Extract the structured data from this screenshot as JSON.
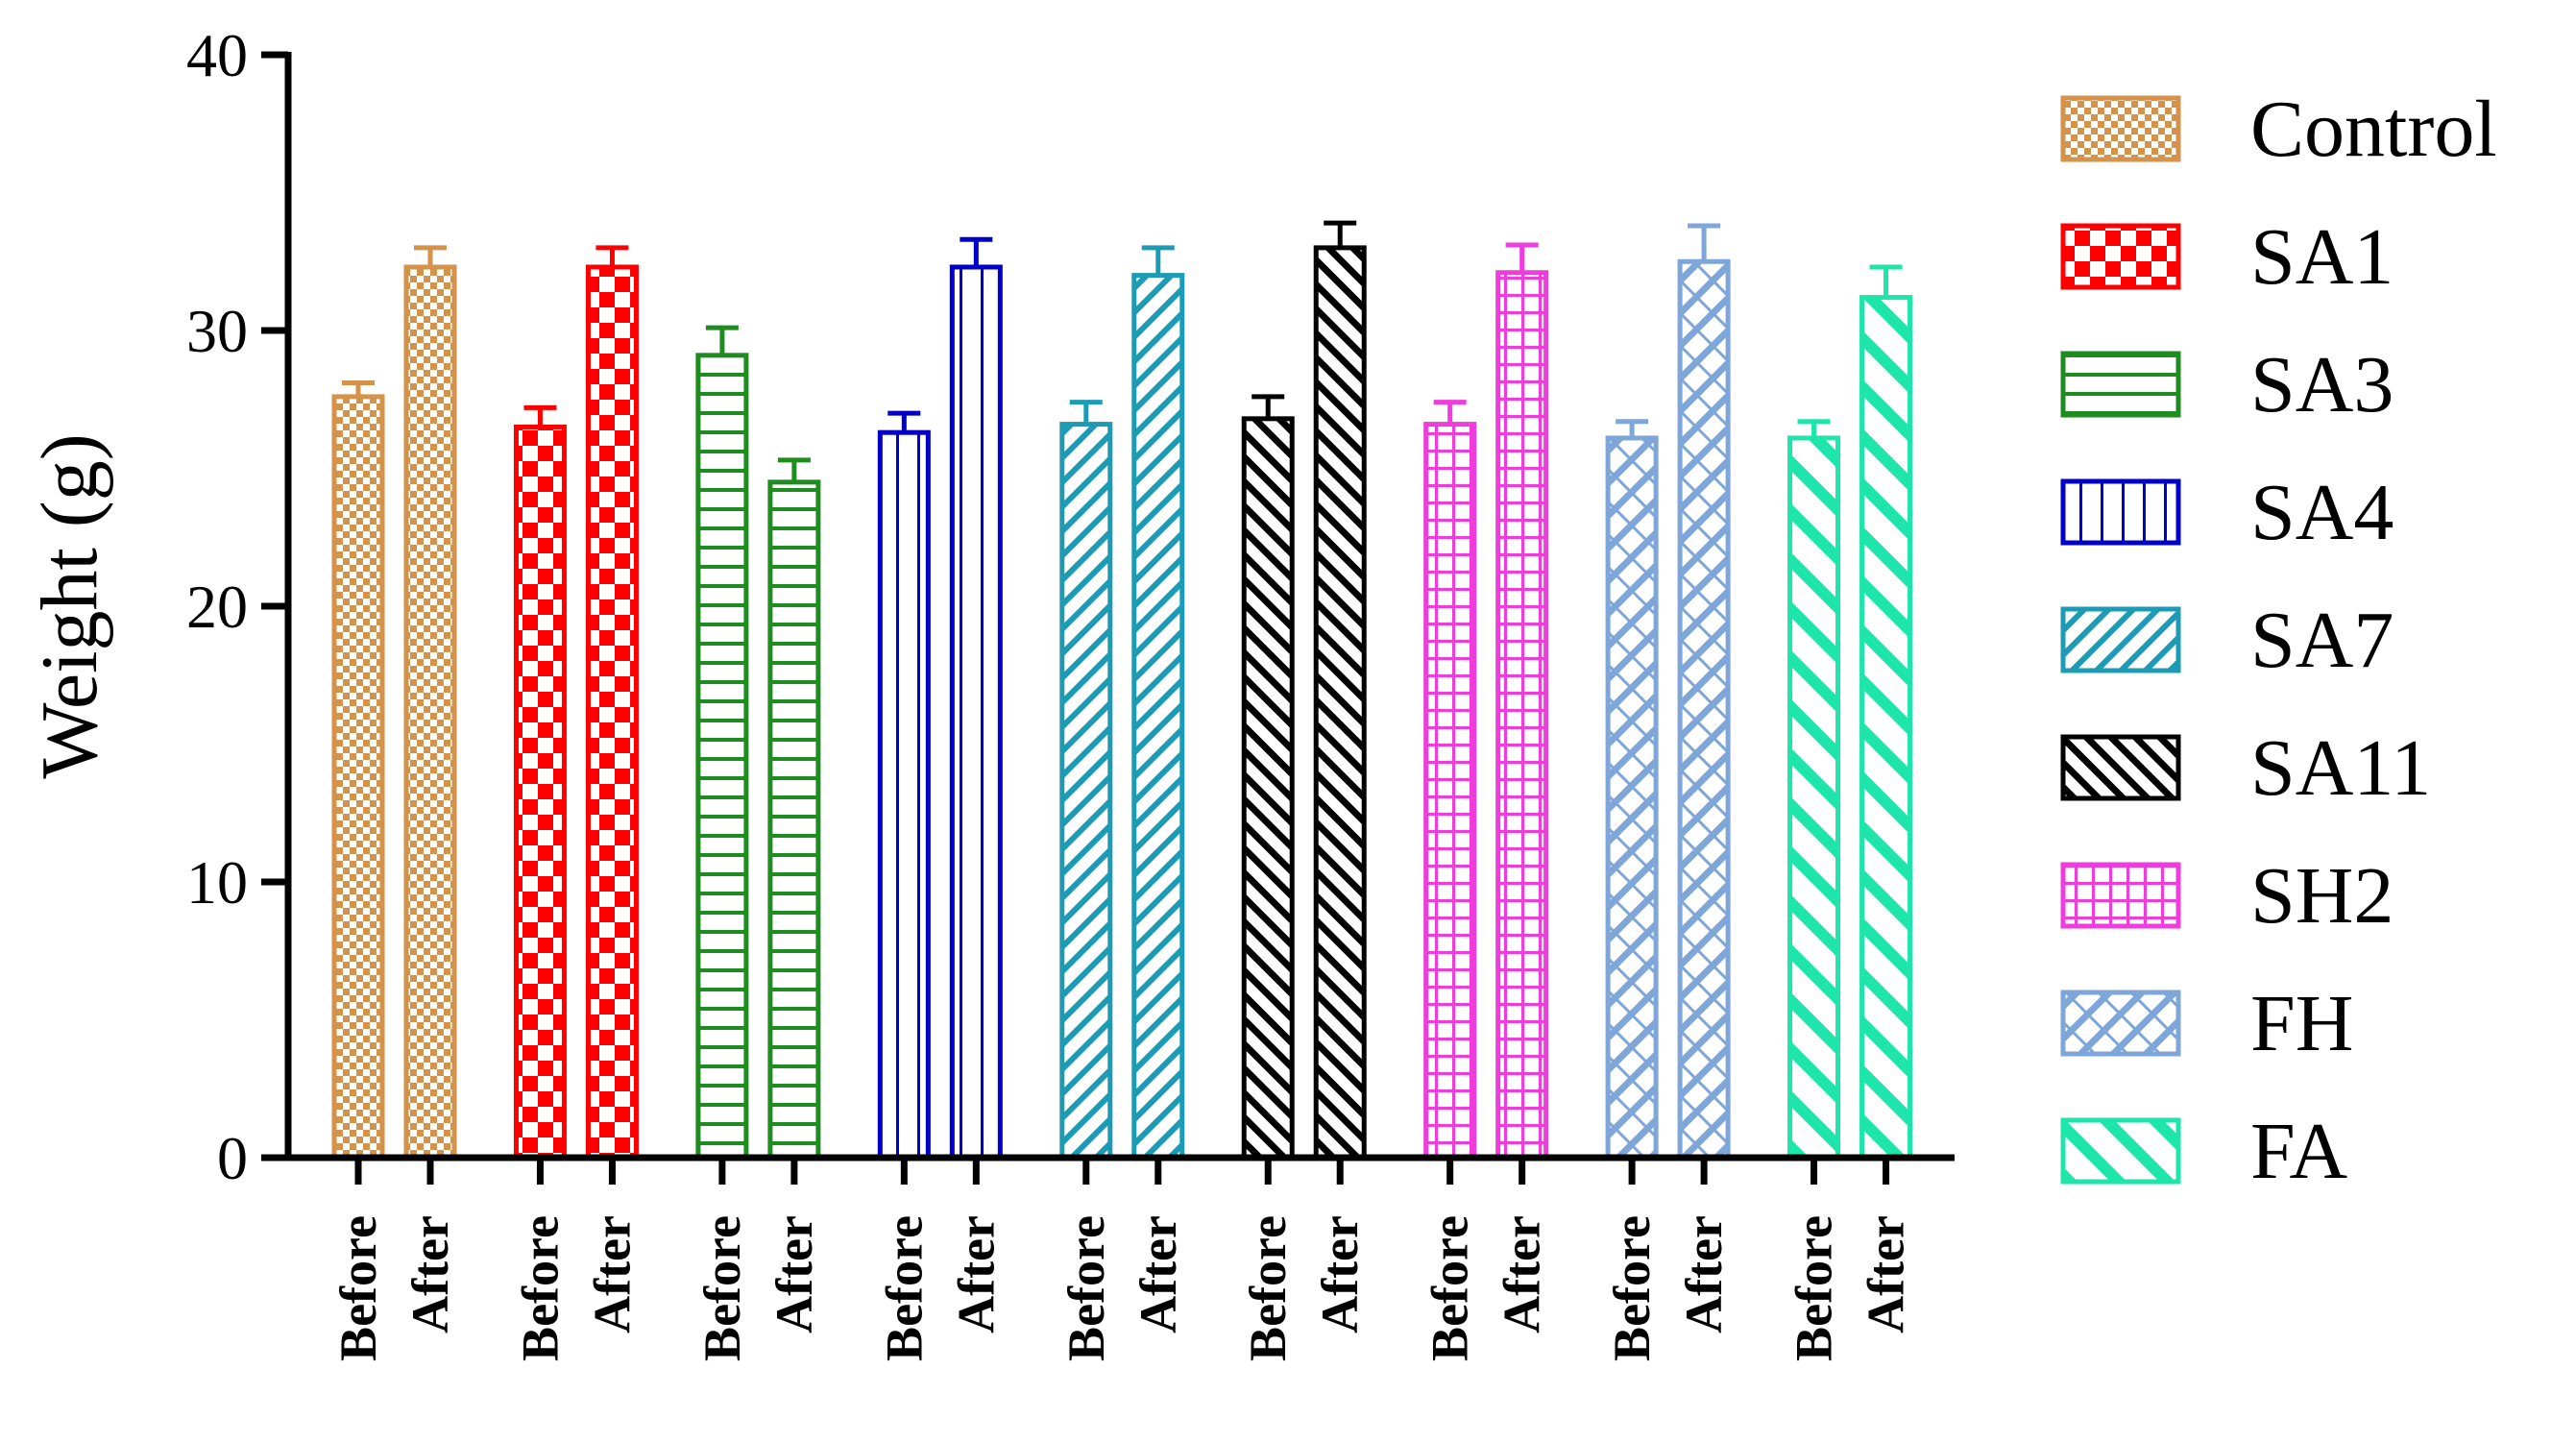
{
  "chart_data": {
    "type": "bar",
    "title": "",
    "xlabel": "",
    "ylabel": "Weight (g)",
    "ylim": [
      0,
      40
    ],
    "yticks": [
      0,
      10,
      20,
      30,
      40
    ],
    "categories": [
      "Before",
      "After"
    ],
    "series": [
      {
        "name": "Control",
        "color": "#D4924A",
        "pattern": "fine-checker",
        "values": [
          27.6,
          32.3
        ],
        "errors": [
          0.5,
          0.7
        ]
      },
      {
        "name": "SA1",
        "color": "#FF0000",
        "pattern": "checker",
        "values": [
          26.5,
          32.3
        ],
        "errors": [
          0.7,
          0.7
        ]
      },
      {
        "name": "SA3",
        "color": "#1E8C1E",
        "pattern": "horizontal",
        "values": [
          29.1,
          24.5
        ],
        "errors": [
          1.0,
          0.8
        ]
      },
      {
        "name": "SA4",
        "color": "#0000C8",
        "pattern": "vertical",
        "values": [
          26.3,
          32.3
        ],
        "errors": [
          0.7,
          1.0
        ]
      },
      {
        "name": "SA7",
        "color": "#1E9BB4",
        "pattern": "diag-up",
        "values": [
          26.6,
          32.0
        ],
        "errors": [
          0.8,
          1.0
        ]
      },
      {
        "name": "SA11",
        "color": "#000000",
        "pattern": "diag-down",
        "values": [
          26.8,
          33.0
        ],
        "errors": [
          0.8,
          0.9
        ]
      },
      {
        "name": "SH2",
        "color": "#F03CDC",
        "pattern": "grid",
        "values": [
          26.6,
          32.1
        ],
        "errors": [
          0.8,
          1.0
        ]
      },
      {
        "name": "FH",
        "color": "#7EA6D8",
        "pattern": "crosshatch",
        "values": [
          26.1,
          32.5
        ],
        "errors": [
          0.6,
          1.3
        ]
      },
      {
        "name": "FA",
        "color": "#1EE6AA",
        "pattern": "wide-diag-down",
        "values": [
          26.1,
          31.2
        ],
        "errors": [
          0.6,
          1.1
        ]
      }
    ]
  }
}
